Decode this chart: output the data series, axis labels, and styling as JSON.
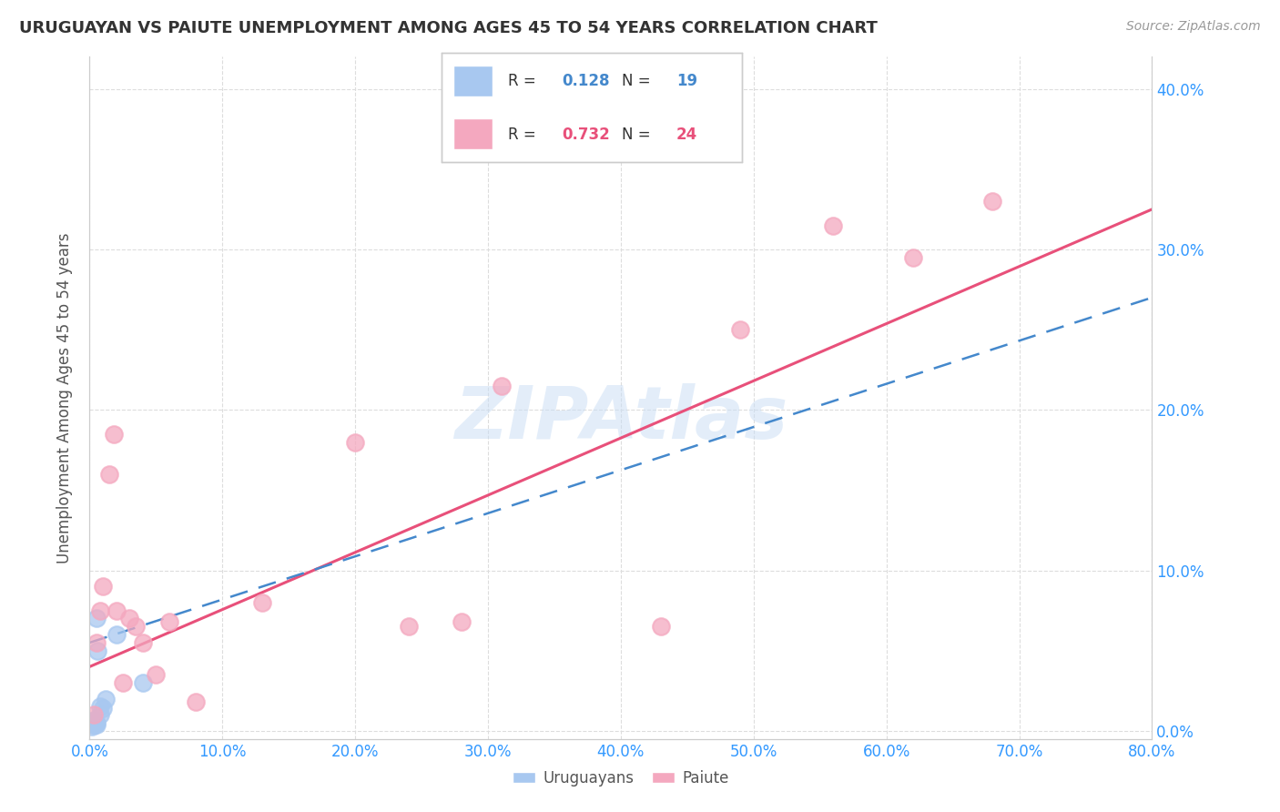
{
  "title": "URUGUAYAN VS PAIUTE UNEMPLOYMENT AMONG AGES 45 TO 54 YEARS CORRELATION CHART",
  "source": "Source: ZipAtlas.com",
  "ylabel": "Unemployment Among Ages 45 to 54 years",
  "xlim": [
    0.0,
    0.8
  ],
  "ylim": [
    -0.005,
    0.42
  ],
  "xticks": [
    0.0,
    0.1,
    0.2,
    0.3,
    0.4,
    0.5,
    0.6,
    0.7,
    0.8
  ],
  "xticklabels": [
    "0.0%",
    "10.0%",
    "20.0%",
    "30.0%",
    "40.0%",
    "50.0%",
    "60.0%",
    "70.0%",
    "80.0%"
  ],
  "yticks": [
    0.0,
    0.1,
    0.2,
    0.3,
    0.4
  ],
  "yticklabels": [
    "0.0%",
    "10.0%",
    "20.0%",
    "30.0%",
    "40.0%"
  ],
  "uruguayan_R": 0.128,
  "uruguayan_N": 19,
  "paiute_R": 0.732,
  "paiute_N": 24,
  "uruguayan_color": "#a8c8f0",
  "paiute_color": "#f4a8bf",
  "uruguayan_line_color": "#4488cc",
  "paiute_line_color": "#e8507a",
  "watermark": "ZIPAtlas",
  "uruguayan_x": [
    0.001,
    0.002,
    0.002,
    0.003,
    0.003,
    0.003,
    0.004,
    0.004,
    0.004,
    0.005,
    0.005,
    0.005,
    0.006,
    0.008,
    0.008,
    0.01,
    0.012,
    0.02,
    0.04
  ],
  "uruguayan_y": [
    0.005,
    0.003,
    0.005,
    0.004,
    0.005,
    0.007,
    0.004,
    0.005,
    0.006,
    0.004,
    0.005,
    0.07,
    0.05,
    0.01,
    0.015,
    0.014,
    0.02,
    0.06,
    0.03
  ],
  "paiute_x": [
    0.003,
    0.005,
    0.008,
    0.01,
    0.015,
    0.018,
    0.02,
    0.025,
    0.03,
    0.035,
    0.04,
    0.05,
    0.06,
    0.08,
    0.13,
    0.2,
    0.24,
    0.28,
    0.31,
    0.43,
    0.49,
    0.56,
    0.62,
    0.68
  ],
  "paiute_y": [
    0.01,
    0.055,
    0.075,
    0.09,
    0.16,
    0.185,
    0.075,
    0.03,
    0.07,
    0.065,
    0.055,
    0.035,
    0.068,
    0.018,
    0.08,
    0.18,
    0.065,
    0.068,
    0.215,
    0.065,
    0.25,
    0.315,
    0.295,
    0.33
  ],
  "uruguayan_line_x0": 0.0,
  "uruguayan_line_y0": 0.055,
  "uruguayan_line_x1": 0.8,
  "uruguayan_line_y1": 0.27,
  "paiute_line_x0": 0.0,
  "paiute_line_y0": 0.04,
  "paiute_line_x1": 0.8,
  "paiute_line_y1": 0.325
}
